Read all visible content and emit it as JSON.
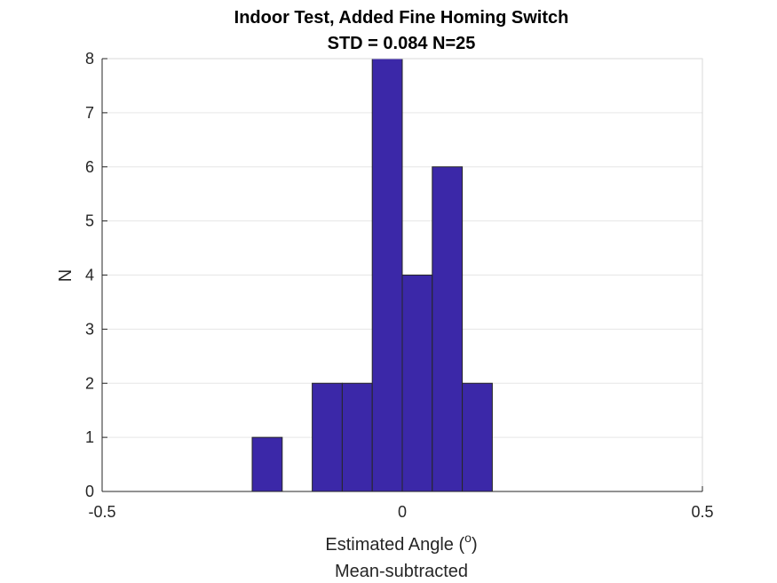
{
  "chart_data": {
    "type": "bar",
    "title": "Indoor Test, Added Fine Homing Switch",
    "subtitle": "STD = 0.084 N=25",
    "xlabel_main": "Estimated Angle (",
    "xlabel_sup": "o",
    "xlabel_close": ")",
    "xlabel_line2": "Mean-subtracted",
    "ylabel": "N",
    "xlim": [
      -0.5,
      0.5
    ],
    "ylim": [
      0,
      8
    ],
    "xticks": [
      "-0.5",
      "0",
      "0.5"
    ],
    "xtick_values": [
      -0.5,
      0,
      0.5
    ],
    "yticks": [
      "0",
      "1",
      "2",
      "3",
      "4",
      "5",
      "6",
      "7",
      "8"
    ],
    "ytick_values": [
      0,
      1,
      2,
      3,
      4,
      5,
      6,
      7,
      8
    ],
    "grid": "horizontal",
    "bar_color": "#3b28a8",
    "bins": [
      {
        "x0": -0.25,
        "x1": -0.2,
        "value": 1
      },
      {
        "x0": -0.15,
        "x1": -0.1,
        "value": 2
      },
      {
        "x0": -0.1,
        "x1": -0.05,
        "value": 2
      },
      {
        "x0": -0.05,
        "x1": 0.0,
        "value": 8
      },
      {
        "x0": 0.0,
        "x1": 0.05,
        "value": 4
      },
      {
        "x0": 0.05,
        "x1": 0.1,
        "value": 6
      },
      {
        "x0": 0.1,
        "x1": 0.15,
        "value": 2
      }
    ]
  }
}
